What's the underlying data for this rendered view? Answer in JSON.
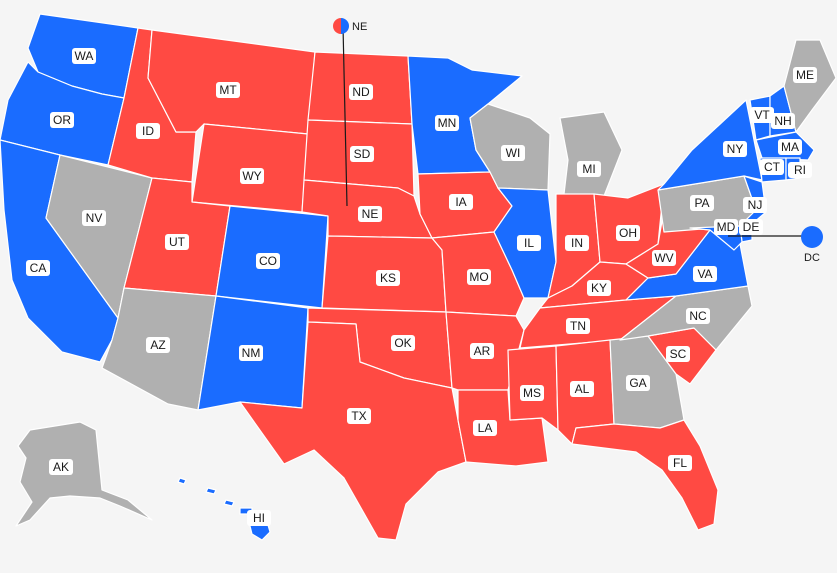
{
  "colors": {
    "dem": "#1a6cff",
    "rep": "#ff4a43",
    "undecided": "#b0b0b0",
    "background": "#f5f5f5"
  },
  "states": [
    {
      "code": "WA",
      "party": "dem"
    },
    {
      "code": "OR",
      "party": "dem"
    },
    {
      "code": "CA",
      "party": "dem"
    },
    {
      "code": "NV",
      "party": "undecided"
    },
    {
      "code": "ID",
      "party": "rep"
    },
    {
      "code": "MT",
      "party": "rep"
    },
    {
      "code": "WY",
      "party": "rep"
    },
    {
      "code": "UT",
      "party": "rep"
    },
    {
      "code": "AZ",
      "party": "undecided"
    },
    {
      "code": "CO",
      "party": "dem"
    },
    {
      "code": "NM",
      "party": "dem"
    },
    {
      "code": "ND",
      "party": "rep"
    },
    {
      "code": "SD",
      "party": "rep"
    },
    {
      "code": "NE",
      "party": "rep"
    },
    {
      "code": "KS",
      "party": "rep"
    },
    {
      "code": "OK",
      "party": "rep"
    },
    {
      "code": "TX",
      "party": "rep"
    },
    {
      "code": "MN",
      "party": "dem"
    },
    {
      "code": "IA",
      "party": "rep"
    },
    {
      "code": "MO",
      "party": "rep"
    },
    {
      "code": "AR",
      "party": "rep"
    },
    {
      "code": "LA",
      "party": "rep"
    },
    {
      "code": "WI",
      "party": "undecided"
    },
    {
      "code": "IL",
      "party": "dem"
    },
    {
      "code": "MI",
      "party": "undecided"
    },
    {
      "code": "IN",
      "party": "rep"
    },
    {
      "code": "OH",
      "party": "rep"
    },
    {
      "code": "KY",
      "party": "rep"
    },
    {
      "code": "TN",
      "party": "rep"
    },
    {
      "code": "MS",
      "party": "rep"
    },
    {
      "code": "AL",
      "party": "rep"
    },
    {
      "code": "GA",
      "party": "undecided"
    },
    {
      "code": "FL",
      "party": "rep"
    },
    {
      "code": "SC",
      "party": "rep"
    },
    {
      "code": "NC",
      "party": "undecided"
    },
    {
      "code": "VA",
      "party": "dem"
    },
    {
      "code": "WV",
      "party": "rep"
    },
    {
      "code": "PA",
      "party": "undecided"
    },
    {
      "code": "NY",
      "party": "dem"
    },
    {
      "code": "VT",
      "party": "dem"
    },
    {
      "code": "NH",
      "party": "dem"
    },
    {
      "code": "ME",
      "party": "undecided"
    },
    {
      "code": "MA",
      "party": "dem"
    },
    {
      "code": "RI",
      "party": "dem"
    },
    {
      "code": "CT",
      "party": "dem"
    },
    {
      "code": "NJ",
      "party": "dem"
    },
    {
      "code": "DE",
      "party": "dem"
    },
    {
      "code": "MD",
      "party": "dem"
    },
    {
      "code": "AK",
      "party": "undecided"
    },
    {
      "code": "HI",
      "party": "dem"
    }
  ],
  "external_labels": {
    "ne_split": "NE",
    "dc": "DC"
  },
  "dc_party": "dem"
}
